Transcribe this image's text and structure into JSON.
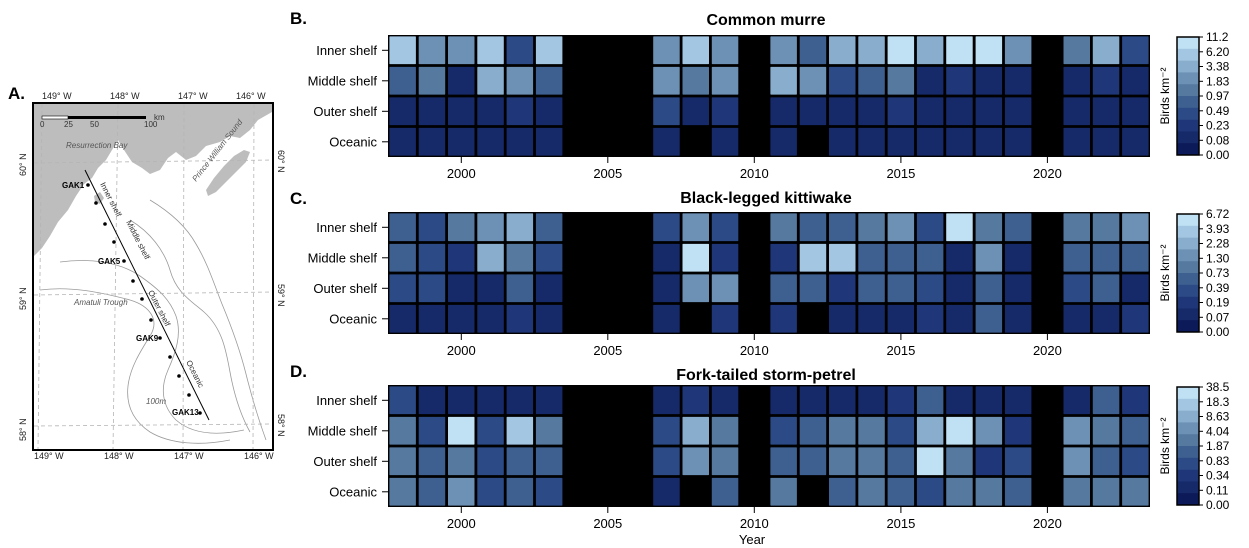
{
  "colors": {
    "scale": [
      "#0d1a59",
      "#162a6a",
      "#1f3778",
      "#2b4a86",
      "#3e6090",
      "#55799f",
      "#6d91b5",
      "#89adcd",
      "#a3c7e2",
      "#bfe1f3"
    ],
    "missing": "#000000",
    "land": "#bdbdbd",
    "frame": "#000000"
  },
  "map": {
    "panel_label": "A.",
    "lon_ticks": [
      "149° W",
      "148° W",
      "147° W",
      "146° W"
    ],
    "lat_ticks": [
      "60° N",
      "59° N",
      "58° N"
    ],
    "scalebar_ticks": [
      "0",
      "25",
      "50",
      "100"
    ],
    "scalebar_unit": "km",
    "place_labels": [
      "Resurrection Bay",
      "Prince William Sound",
      "Amatuli Trough",
      "100m"
    ],
    "domain_labels": [
      "Inner shelf",
      "Middle shelf",
      "Outer shelf",
      "Oceanic"
    ],
    "stations": [
      "GAK1",
      "GAK5",
      "GAK9",
      "GAK13"
    ]
  },
  "x_axis_label": "Year",
  "colorbar_unit": "Birds km⁻²",
  "chart_data": [
    {
      "panel_label": "B.",
      "type": "heatmap",
      "title": "Common murre",
      "rows": [
        "Inner shelf",
        "Middle shelf",
        "Outer shelf",
        "Oceanic"
      ],
      "years": [
        1998,
        1999,
        2000,
        2001,
        2002,
        2003,
        2004,
        2005,
        2006,
        2007,
        2008,
        2009,
        2010,
        2011,
        2012,
        2013,
        2014,
        2015,
        2016,
        2017,
        2018,
        2019,
        2020,
        2021,
        2022,
        2023
      ],
      "x_ticks": [
        2000,
        2005,
        2010,
        2015,
        2020
      ],
      "colorbar_ticks": [
        "11.2",
        "6.20",
        "3.38",
        "1.83",
        "0.97",
        "0.49",
        "0.23",
        "0.08",
        "0.00"
      ],
      "color_bins": [
        [
          8,
          6,
          6,
          8,
          3,
          8,
          null,
          null,
          null,
          6,
          8,
          6,
          null,
          6,
          4,
          7,
          7,
          9,
          7,
          9,
          9,
          6,
          null,
          5,
          7,
          3
        ],
        [
          4,
          5,
          1,
          7,
          6,
          4,
          null,
          null,
          null,
          6,
          5,
          6,
          null,
          7,
          6,
          3,
          4,
          5,
          1,
          2,
          1,
          1,
          null,
          1,
          2,
          1
        ],
        [
          1,
          1,
          1,
          1,
          2,
          1,
          null,
          null,
          null,
          3,
          1,
          2,
          null,
          1,
          1,
          1,
          1,
          2,
          1,
          1,
          1,
          1,
          null,
          1,
          1,
          1
        ],
        [
          1,
          1,
          1,
          1,
          1,
          1,
          null,
          null,
          null,
          1,
          null,
          1,
          null,
          1,
          null,
          1,
          1,
          1,
          1,
          1,
          1,
          1,
          null,
          1,
          1,
          1
        ]
      ]
    },
    {
      "panel_label": "C.",
      "type": "heatmap",
      "title": "Black-legged kittiwake",
      "rows": [
        "Inner shelf",
        "Middle shelf",
        "Outer shelf",
        "Oceanic"
      ],
      "years": [
        1998,
        1999,
        2000,
        2001,
        2002,
        2003,
        2004,
        2005,
        2006,
        2007,
        2008,
        2009,
        2010,
        2011,
        2012,
        2013,
        2014,
        2015,
        2016,
        2017,
        2018,
        2019,
        2020,
        2021,
        2022,
        2023
      ],
      "x_ticks": [
        2000,
        2005,
        2010,
        2015,
        2020
      ],
      "colorbar_ticks": [
        "6.72",
        "3.93",
        "2.28",
        "1.30",
        "0.73",
        "0.39",
        "0.19",
        "0.07",
        "0.00"
      ],
      "color_bins": [
        [
          4,
          3,
          5,
          6,
          7,
          4,
          null,
          null,
          null,
          3,
          6,
          3,
          null,
          5,
          4,
          4,
          5,
          6,
          3,
          9,
          5,
          4,
          null,
          5,
          5,
          6
        ],
        [
          4,
          3,
          2,
          7,
          5,
          3,
          null,
          null,
          null,
          1,
          9,
          2,
          null,
          2,
          8,
          8,
          4,
          4,
          4,
          1,
          6,
          1,
          null,
          4,
          4,
          4
        ],
        [
          3,
          3,
          1,
          1,
          4,
          1,
          null,
          null,
          null,
          1,
          6,
          6,
          null,
          4,
          4,
          2,
          4,
          4,
          3,
          1,
          4,
          1,
          null,
          3,
          4,
          1
        ],
        [
          1,
          1,
          1,
          1,
          2,
          1,
          null,
          null,
          null,
          1,
          null,
          2,
          null,
          2,
          null,
          1,
          1,
          1,
          2,
          1,
          4,
          1,
          null,
          1,
          1,
          2
        ]
      ]
    },
    {
      "panel_label": "D.",
      "type": "heatmap",
      "title": "Fork-tailed storm-petrel",
      "rows": [
        "Inner shelf",
        "Middle shelf",
        "Outer shelf",
        "Oceanic"
      ],
      "years": [
        1998,
        1999,
        2000,
        2001,
        2002,
        2003,
        2004,
        2005,
        2006,
        2007,
        2008,
        2009,
        2010,
        2011,
        2012,
        2013,
        2014,
        2015,
        2016,
        2017,
        2018,
        2019,
        2020,
        2021,
        2022,
        2023
      ],
      "x_ticks": [
        2000,
        2005,
        2010,
        2015,
        2020
      ],
      "colorbar_ticks": [
        "38.5",
        "18.3",
        "8.63",
        "4.04",
        "1.87",
        "0.83",
        "0.34",
        "0.11",
        "0.00"
      ],
      "color_bins": [
        [
          3,
          1,
          1,
          1,
          1,
          1,
          null,
          null,
          null,
          1,
          2,
          1,
          null,
          1,
          1,
          1,
          1,
          2,
          4,
          1,
          1,
          1,
          null,
          1,
          4,
          2
        ],
        [
          5,
          3,
          9,
          3,
          8,
          5,
          null,
          null,
          null,
          3,
          7,
          5,
          null,
          3,
          4,
          5,
          5,
          3,
          7,
          9,
          6,
          2,
          null,
          6,
          5,
          4
        ],
        [
          5,
          4,
          5,
          3,
          4,
          4,
          null,
          null,
          null,
          3,
          6,
          5,
          null,
          4,
          4,
          5,
          5,
          4,
          9,
          5,
          2,
          3,
          null,
          6,
          4,
          3
        ],
        [
          5,
          4,
          6,
          3,
          4,
          3,
          null,
          null,
          null,
          1,
          null,
          4,
          null,
          5,
          null,
          4,
          5,
          4,
          3,
          5,
          5,
          4,
          null,
          5,
          5,
          5
        ]
      ]
    }
  ]
}
